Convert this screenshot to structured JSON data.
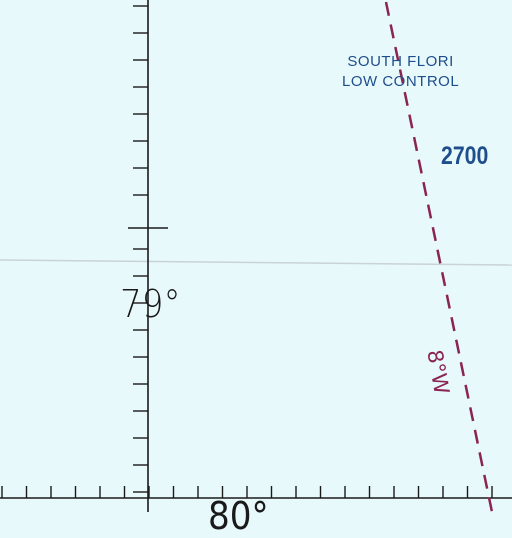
{
  "map": {
    "area_name_line1": "SOUTH FLORI",
    "area_name_line2": "LOW CONTROL",
    "altitude": "2700",
    "longitude_label": "79°",
    "isogonic_label": "8°W",
    "bottom_partial_label": "80°",
    "colors": {
      "background": "#e8f9fb",
      "area_text": "#1f4e8c",
      "isogonic_line": "#8a2450",
      "grid_ink": "#1a1a1a",
      "latitude_line": "#c8d0d4"
    }
  }
}
